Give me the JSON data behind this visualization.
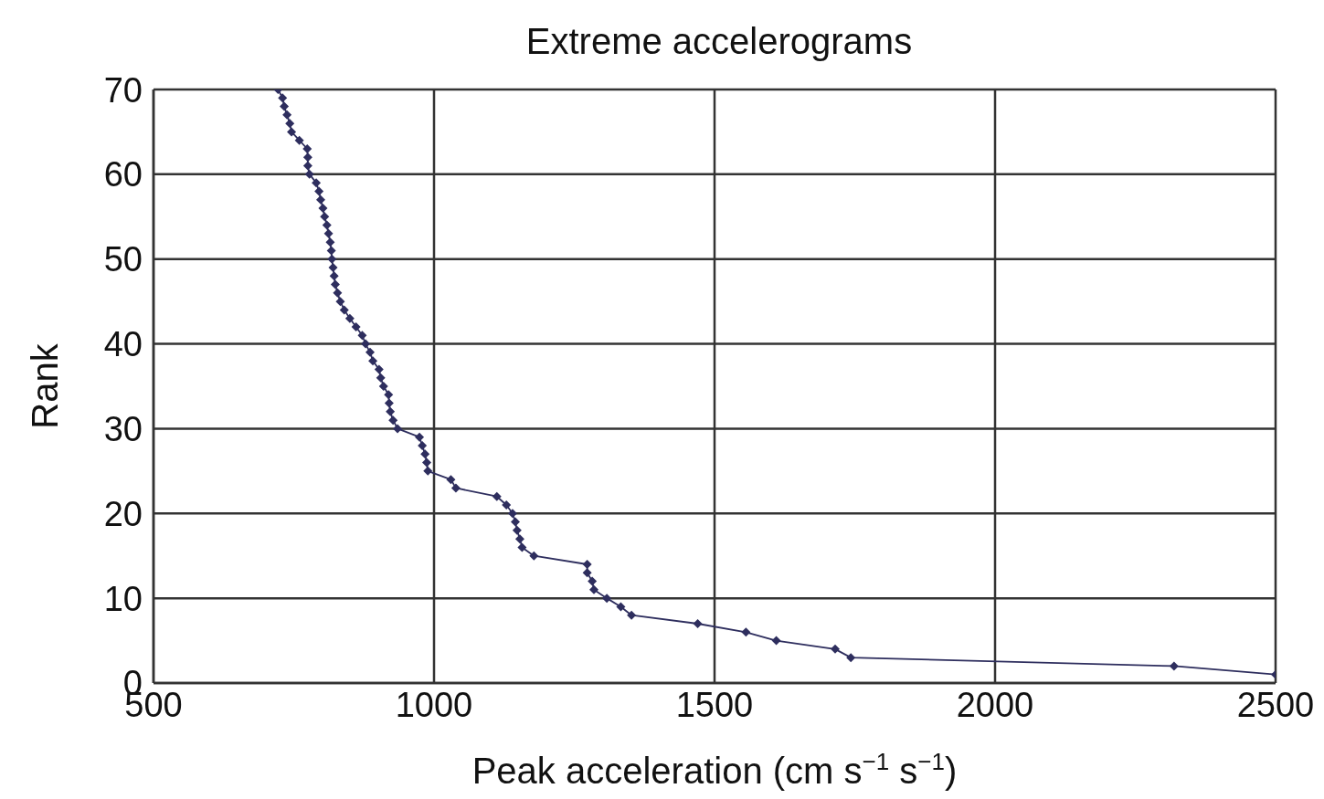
{
  "chart_data": {
    "type": "line",
    "title": "Extreme accelerograms",
    "xlabel": "Peak acceleration (cm s$^{−1}$ s$^{−1}$)",
    "ylabel": "Rank",
    "xlim": [
      500,
      2500
    ],
    "xticks": [
      500,
      1000,
      1500,
      2000,
      2500
    ],
    "ylim": [
      0,
      70
    ],
    "yticks": [
      0,
      10,
      20,
      30,
      40,
      50,
      60,
      70
    ],
    "grid": true,
    "marker": "diamond",
    "line_style": "solid",
    "series": [
      {
        "color": "#2e2e5e",
        "x": [
          2500,
          2319,
          1743,
          1715,
          1610,
          1556,
          1470,
          1352,
          1333,
          1308,
          1285,
          1282,
          1273,
          1273,
          1178,
          1157,
          1153,
          1148,
          1145,
          1140,
          1129,
          1112,
          1039,
          1030,
          989,
          987,
          984,
          979,
          974,
          935,
          927,
          922,
          920,
          919,
          910,
          905,
          902,
          891,
          886,
          878,
          872,
          861,
          850,
          840,
          833,
          828,
          824,
          822,
          820,
          818,
          817,
          815,
          812,
          809,
          805,
          802,
          798,
          795,
          790,
          778,
          775,
          775,
          774,
          760,
          746,
          743,
          738,
          733,
          730,
          722
        ],
        "values": [
          1,
          2,
          3,
          4,
          5,
          6,
          7,
          8,
          9,
          10,
          11,
          12,
          13,
          14,
          15,
          16,
          17,
          18,
          19,
          20,
          21,
          22,
          23,
          24,
          25,
          26,
          27,
          28,
          29,
          30,
          31,
          32,
          33,
          34,
          35,
          36,
          37,
          38,
          39,
          40,
          41,
          42,
          43,
          44,
          45,
          46,
          47,
          48,
          49,
          50,
          51,
          52,
          53,
          54,
          55,
          56,
          57,
          58,
          59,
          60,
          61,
          62,
          63,
          64,
          65,
          66,
          67,
          68,
          69,
          70
        ]
      }
    ]
  }
}
